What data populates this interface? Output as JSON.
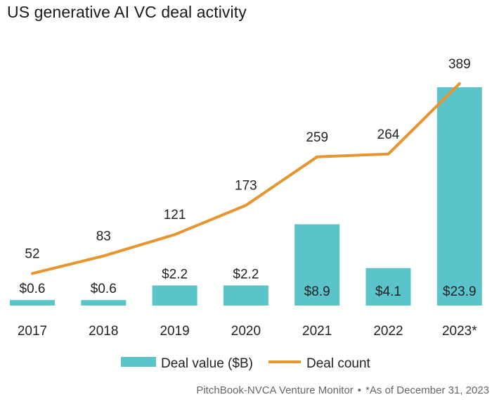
{
  "title": "US generative AI VC deal activity",
  "footer": {
    "source": "PitchBook-NVCA Venture Monitor",
    "separator": "•",
    "note": "*As of December 31, 2023"
  },
  "colors": {
    "bar": "#5bc4cb",
    "line": "#e6952f",
    "text": "#222222"
  },
  "chart_data": {
    "type": "bar+line",
    "title": "US generative AI VC deal activity",
    "categories": [
      "2017",
      "2018",
      "2019",
      "2020",
      "2021",
      "2022",
      "2023*"
    ],
    "series": [
      {
        "name": "Deal value ($B)",
        "type": "bar",
        "values": [
          0.6,
          0.6,
          2.2,
          2.2,
          8.9,
          4.1,
          23.9
        ],
        "labels": [
          "$0.6",
          "$0.6",
          "$2.2",
          "$2.2",
          "$8.9",
          "$4.1",
          "$23.9"
        ]
      },
      {
        "name": "Deal count",
        "type": "line",
        "values": [
          52,
          83,
          121,
          173,
          259,
          264,
          389
        ],
        "labels": [
          "52",
          "83",
          "121",
          "173",
          "259",
          "264",
          "389"
        ]
      }
    ],
    "legend": "bottom-center",
    "grid": false
  }
}
